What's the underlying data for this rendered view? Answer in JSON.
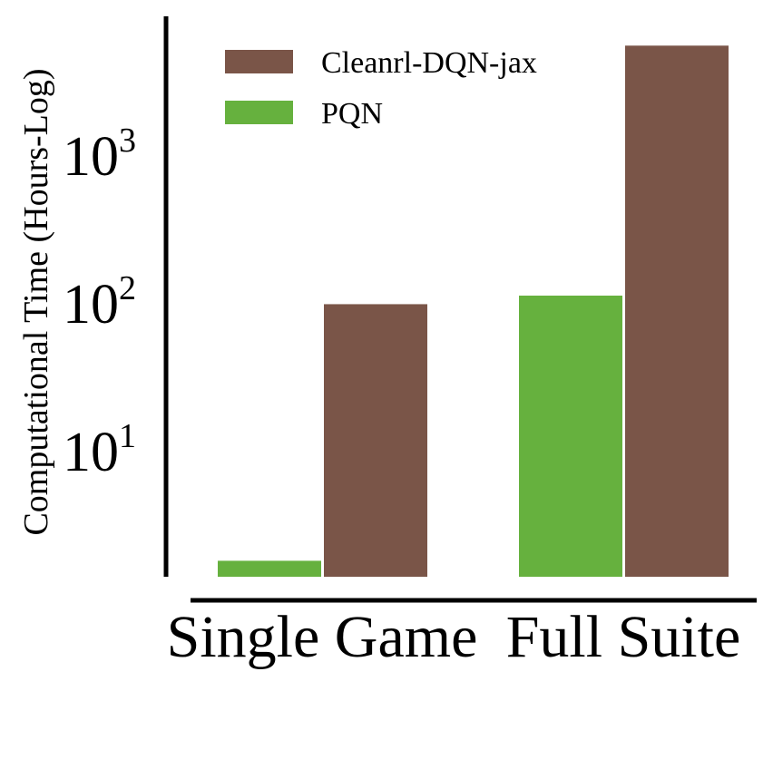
{
  "chart_data": {
    "type": "bar",
    "title": "",
    "xlabel": "",
    "ylabel": "Computational Time (Hours-Log)",
    "yscale": "log",
    "ylim": [
      1.2,
      8000
    ],
    "yticks": [
      {
        "value": 10,
        "base": "10",
        "exp": "1"
      },
      {
        "value": 100,
        "base": "10",
        "exp": "2"
      },
      {
        "value": 1000,
        "base": "10",
        "exp": "3"
      }
    ],
    "categories": [
      "Single Game",
      "Full Suite"
    ],
    "series": [
      {
        "name": "PQN",
        "color": "#66b13e",
        "values": [
          1.8,
          112
        ]
      },
      {
        "name": "Cleanrl-DQN-jax",
        "color": "#7a5548",
        "values": [
          98,
          5500
        ]
      }
    ],
    "legend": {
      "placement": "top-left",
      "order": [
        "Cleanrl-DQN-jax",
        "PQN"
      ]
    },
    "grid": false
  }
}
